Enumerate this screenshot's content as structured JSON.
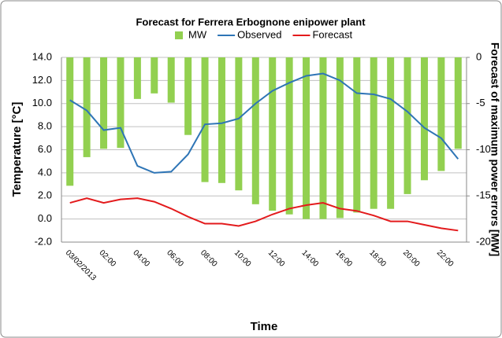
{
  "chart_data": {
    "type": "bar",
    "title": "Forecast for Ferrera Erbognone enipower plant",
    "x_label": "Time",
    "y_label": "Temperature [°C]",
    "y2_label": "Forecast of maximum power errors [MW]",
    "categories": [
      "03/02/2013",
      null,
      "02:00",
      null,
      "04:00",
      null,
      "06:00",
      null,
      "08:00",
      null,
      "10:00",
      null,
      "12:00",
      null,
      "14:00",
      null,
      "16:00",
      null,
      "18:00",
      null,
      "20:00",
      null,
      "22:00",
      null
    ],
    "series": [
      {
        "name": "MW",
        "type": "bar",
        "axis": "y2",
        "color": "#92d050",
        "values": [
          -13.9,
          -10.8,
          -9.9,
          -9.8,
          -4.5,
          -3.9,
          -4.9,
          -8.4,
          -13.5,
          -13.6,
          -14.4,
          -15.9,
          -16.6,
          -17.0,
          -17.5,
          -17.5,
          -17.4,
          -16.8,
          -16.4,
          -16.4,
          -14.8,
          -13.3,
          -12.3,
          -9.9
        ]
      },
      {
        "name": "Observed",
        "type": "line",
        "color": "#2e75b6",
        "values": [
          10.3,
          9.4,
          7.7,
          7.9,
          4.6,
          4.0,
          4.1,
          5.6,
          8.2,
          8.3,
          8.7,
          10.0,
          11.1,
          11.8,
          12.4,
          12.6,
          12.0,
          10.9,
          10.8,
          10.4,
          9.3,
          7.9,
          7.0,
          5.2
        ]
      },
      {
        "name": "Forecast",
        "type": "line",
        "color": "#e31a1c",
        "values": [
          1.4,
          1.8,
          1.4,
          1.7,
          1.8,
          1.5,
          0.9,
          0.2,
          -0.4,
          -0.4,
          -0.6,
          -0.2,
          0.4,
          0.9,
          1.2,
          1.4,
          0.9,
          0.7,
          0.3,
          -0.2,
          -0.2,
          -0.5,
          -0.8,
          -1.0
        ]
      }
    ],
    "ylim": [
      -2,
      14
    ],
    "yticks": [
      {
        "value": -2,
        "label": "-2.0"
      },
      {
        "value": 0,
        "label": "0.0"
      },
      {
        "value": 2,
        "label": "2.0"
      },
      {
        "value": 4,
        "label": "4.0"
      },
      {
        "value": 6,
        "label": "6.0"
      },
      {
        "value": 8,
        "label": "8.0"
      },
      {
        "value": 10,
        "label": "10.0"
      },
      {
        "value": 12,
        "label": "12.0"
      },
      {
        "value": 14,
        "label": "14.0"
      }
    ],
    "y2lim": [
      -20,
      0
    ],
    "y2ticks": [
      -20,
      -15,
      -10,
      -5,
      0
    ],
    "grid": true,
    "legend": "top"
  }
}
